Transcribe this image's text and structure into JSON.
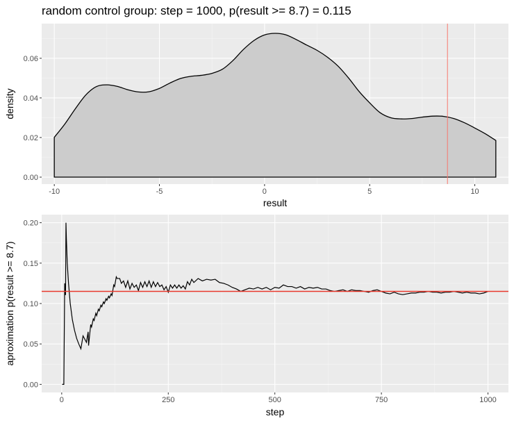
{
  "chart_data": [
    {
      "type": "area",
      "title": "random control group: step = 1000, p(result >= 8.7) = 0.115",
      "xlabel": "result",
      "ylabel": "density",
      "xlim": [
        -10.6,
        11.6
      ],
      "ylim": [
        -0.0035,
        0.0775
      ],
      "xticks": [
        -10,
        -5,
        0,
        5,
        10
      ],
      "xtick_labels": [
        "-10",
        "-5",
        "0",
        "5",
        "10"
      ],
      "yticks": [
        0.0,
        0.02,
        0.04,
        0.06
      ],
      "ytick_labels": [
        "0.00",
        "0.02",
        "0.04",
        "0.06"
      ],
      "grid": true,
      "fill_color": "#cccccc",
      "line_color": "#000000",
      "vline": {
        "x": 8.7,
        "color": "#f8766d"
      },
      "x": [
        -10.0,
        -9.5,
        -9.0,
        -8.5,
        -8.0,
        -7.5,
        -7.0,
        -6.5,
        -6.0,
        -5.5,
        -5.0,
        -4.5,
        -4.0,
        -3.5,
        -3.0,
        -2.5,
        -2.0,
        -1.5,
        -1.0,
        -0.5,
        0.0,
        0.5,
        1.0,
        1.5,
        2.0,
        2.5,
        3.0,
        3.5,
        4.0,
        4.5,
        5.0,
        5.5,
        6.0,
        6.5,
        7.0,
        7.5,
        8.0,
        8.5,
        9.0,
        9.5,
        10.0,
        10.5,
        11.0
      ],
      "y": [
        0.0201,
        0.0268,
        0.0345,
        0.0415,
        0.0457,
        0.0466,
        0.0458,
        0.0441,
        0.043,
        0.0431,
        0.0448,
        0.0475,
        0.0498,
        0.0509,
        0.0514,
        0.0524,
        0.0545,
        0.0589,
        0.0645,
        0.069,
        0.0718,
        0.0726,
        0.0719,
        0.0695,
        0.0667,
        0.064,
        0.0605,
        0.056,
        0.05,
        0.0432,
        0.0375,
        0.0325,
        0.03,
        0.0294,
        0.0296,
        0.0303,
        0.0308,
        0.0307,
        0.0296,
        0.0275,
        0.0248,
        0.0219,
        0.0185
      ]
    },
    {
      "type": "line",
      "xlabel": "step",
      "ylabel": "aproximation p(result >= 8.7)",
      "xlim": [
        -47,
        1048
      ],
      "ylim": [
        -0.01,
        0.21
      ],
      "xticks": [
        0,
        250,
        500,
        750,
        1000
      ],
      "xtick_labels": [
        "0",
        "250",
        "500",
        "750",
        "1000"
      ],
      "yticks": [
        0.0,
        0.05,
        0.1,
        0.15,
        0.2
      ],
      "ytick_labels": [
        "0.00",
        "0.05",
        "0.10",
        "0.15",
        "0.20"
      ],
      "grid": true,
      "line_color": "#000000",
      "hline": {
        "y": 0.115,
        "color": "#e8382c"
      },
      "x": [
        1,
        4,
        5,
        7,
        8,
        9,
        10,
        11,
        13,
        16,
        20,
        25,
        30,
        35,
        40,
        45,
        50,
        52,
        56,
        58,
        62,
        63,
        68,
        70,
        74,
        76,
        80,
        82,
        86,
        88,
        92,
        94,
        98,
        100,
        104,
        106,
        110,
        112,
        116,
        118,
        122,
        124,
        128,
        130,
        136,
        140,
        145,
        150,
        155,
        160,
        165,
        170,
        175,
        180,
        185,
        190,
        195,
        200,
        205,
        210,
        215,
        220,
        225,
        230,
        235,
        240,
        245,
        250,
        255,
        260,
        265,
        270,
        275,
        280,
        285,
        290,
        295,
        300,
        305,
        310,
        320,
        330,
        340,
        350,
        360,
        370,
        380,
        390,
        400,
        410,
        420,
        430,
        440,
        450,
        460,
        470,
        480,
        490,
        500,
        510,
        520,
        530,
        540,
        550,
        560,
        570,
        580,
        590,
        600,
        610,
        620,
        630,
        640,
        650,
        660,
        670,
        680,
        690,
        700,
        710,
        720,
        730,
        740,
        750,
        760,
        770,
        780,
        790,
        800,
        810,
        820,
        830,
        840,
        850,
        860,
        870,
        880,
        890,
        900,
        910,
        920,
        930,
        940,
        950,
        960,
        970,
        980,
        990,
        1000
      ],
      "y": [
        0.0,
        0.0,
        0.0,
        0.125,
        0.111,
        0.111,
        0.2,
        0.18,
        0.15,
        0.125,
        0.1,
        0.08,
        0.067,
        0.057,
        0.05,
        0.044,
        0.06,
        0.058,
        0.054,
        0.052,
        0.065,
        0.048,
        0.074,
        0.071,
        0.081,
        0.079,
        0.088,
        0.085,
        0.093,
        0.091,
        0.098,
        0.096,
        0.102,
        0.1,
        0.106,
        0.104,
        0.109,
        0.107,
        0.112,
        0.11,
        0.123,
        0.121,
        0.133,
        0.131,
        0.131,
        0.125,
        0.128,
        0.12,
        0.128,
        0.118,
        0.125,
        0.12,
        0.123,
        0.116,
        0.126,
        0.12,
        0.127,
        0.121,
        0.128,
        0.12,
        0.127,
        0.121,
        0.126,
        0.121,
        0.123,
        0.117,
        0.121,
        0.114,
        0.123,
        0.119,
        0.123,
        0.119,
        0.123,
        0.119,
        0.122,
        0.118,
        0.127,
        0.123,
        0.13,
        0.126,
        0.131,
        0.128,
        0.13,
        0.129,
        0.13,
        0.126,
        0.125,
        0.123,
        0.12,
        0.118,
        0.115,
        0.117,
        0.119,
        0.118,
        0.12,
        0.118,
        0.12,
        0.117,
        0.12,
        0.119,
        0.123,
        0.121,
        0.121,
        0.119,
        0.121,
        0.118,
        0.12,
        0.119,
        0.12,
        0.118,
        0.118,
        0.116,
        0.115,
        0.116,
        0.117,
        0.115,
        0.117,
        0.116,
        0.116,
        0.115,
        0.114,
        0.116,
        0.117,
        0.115,
        0.113,
        0.112,
        0.114,
        0.112,
        0.111,
        0.112,
        0.113,
        0.113,
        0.114,
        0.114,
        0.115,
        0.114,
        0.114,
        0.113,
        0.114,
        0.114,
        0.115,
        0.114,
        0.113,
        0.114,
        0.113,
        0.113,
        0.112,
        0.113,
        0.115
      ]
    }
  ]
}
